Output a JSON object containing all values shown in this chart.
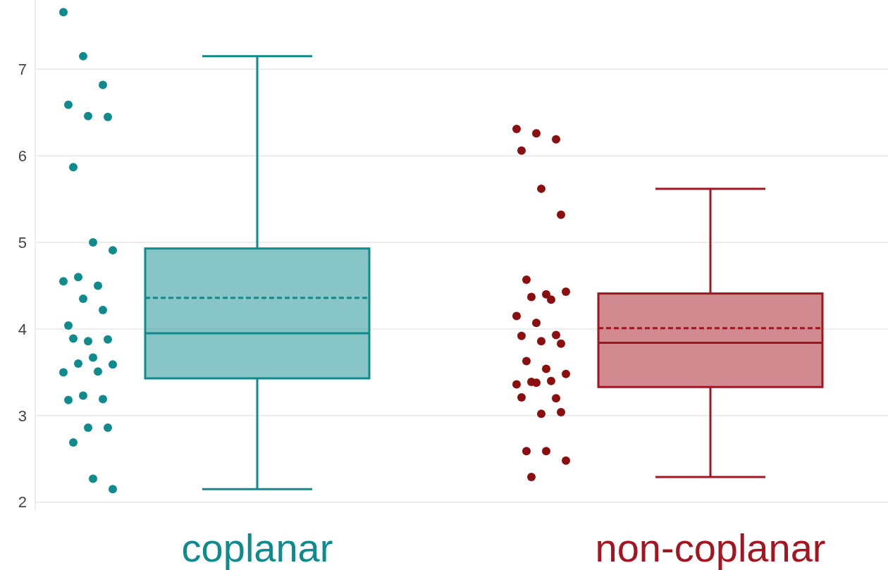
{
  "chart_data": {
    "type": "box",
    "categories": [
      "coplanar",
      "non-coplanar"
    ],
    "ylim": [
      1.9,
      7.8
    ],
    "yticks": [
      2,
      3,
      4,
      5,
      6,
      7
    ],
    "grid": "y",
    "series": [
      {
        "colors": [
          "#0f8b8d",
          "#a31621"
        ],
        "boxes": [
          {
            "low": 2.15,
            "q1": 3.43,
            "median": 3.95,
            "q3": 4.93,
            "high": 7.15,
            "mean": 4.36
          },
          {
            "low": 2.29,
            "q1": 3.33,
            "median": 3.84,
            "q3": 4.41,
            "high": 5.62,
            "mean": 4.01
          }
        ]
      },
      {
        "type": "scatter",
        "color": "#0f8b8d",
        "x": [
          "coplanar",
          "coplanar",
          "coplanar",
          "coplanar",
          "coplanar",
          "coplanar",
          "coplanar",
          "coplanar",
          "coplanar",
          "coplanar",
          "coplanar",
          "coplanar",
          "coplanar",
          "coplanar",
          "coplanar",
          "coplanar",
          "coplanar",
          "coplanar",
          "coplanar",
          "coplanar",
          "coplanar",
          "coplanar",
          "coplanar",
          "coplanar",
          "coplanar",
          "coplanar",
          "coplanar",
          "coplanar",
          "coplanar",
          "coplanar",
          "coplanar"
        ],
        "values": [
          7.66,
          7.15,
          6.82,
          6.59,
          6.46,
          6.45,
          5.87,
          5.0,
          4.91,
          4.6,
          4.5,
          4.55,
          4.35,
          4.22,
          4.04,
          3.86,
          3.88,
          3.89,
          3.67,
          3.59,
          3.6,
          3.51,
          3.5,
          3.23,
          3.19,
          3.18,
          2.86,
          2.86,
          2.69,
          2.27,
          2.15
        ]
      },
      {
        "type": "scatter",
        "color": "#8b0f0f",
        "x": [
          "non-coplanar",
          "non-coplanar",
          "non-coplanar",
          "non-coplanar",
          "non-coplanar",
          "non-coplanar",
          "non-coplanar",
          "non-coplanar",
          "non-coplanar",
          "non-coplanar",
          "non-coplanar",
          "non-coplanar",
          "non-coplanar",
          "non-coplanar",
          "non-coplanar",
          "non-coplanar",
          "non-coplanar",
          "non-coplanar",
          "non-coplanar",
          "non-coplanar",
          "non-coplanar",
          "non-coplanar",
          "non-coplanar",
          "non-coplanar",
          "non-coplanar",
          "non-coplanar",
          "non-coplanar",
          "non-coplanar",
          "non-coplanar",
          "non-coplanar",
          "non-coplanar",
          "non-coplanar"
        ],
        "values": [
          6.31,
          6.26,
          6.19,
          6.06,
          5.62,
          5.32,
          4.57,
          4.4,
          4.43,
          4.37,
          4.34,
          4.15,
          4.07,
          3.93,
          3.92,
          3.86,
          3.83,
          3.63,
          3.54,
          3.48,
          3.39,
          3.4,
          3.36,
          3.38,
          3.2,
          3.21,
          3.02,
          3.04,
          2.59,
          2.59,
          2.48,
          2.29
        ]
      }
    ]
  }
}
